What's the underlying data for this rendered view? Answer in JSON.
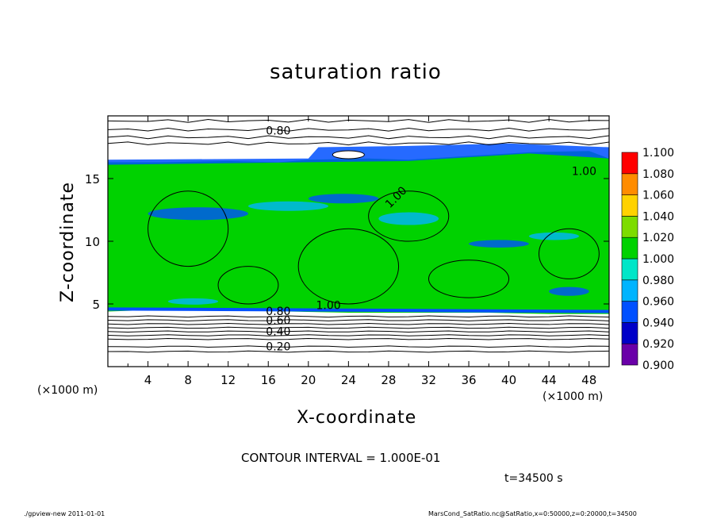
{
  "chart_data": {
    "type": "heatmap",
    "title": "saturation ratio",
    "xlabel": "X-coordinate",
    "ylabel": "Z-coordinate",
    "x_unit_label_left": "(×1000 m)",
    "x_unit_label_right": "(×1000 m)",
    "xlim": [
      0,
      50
    ],
    "ylim": [
      0,
      20
    ],
    "x_ticks": [
      "4",
      "8",
      "12",
      "16",
      "20",
      "24",
      "28",
      "32",
      "36",
      "40",
      "44",
      "48"
    ],
    "y_ticks": [
      "5",
      "10",
      "15"
    ],
    "colorbar": {
      "levels": [
        "0.900",
        "0.920",
        "0.940",
        "0.960",
        "0.980",
        "1.000",
        "1.020",
        "1.040",
        "1.060",
        "1.080",
        "1.100"
      ],
      "colors": [
        "#6a00a8",
        "#0000c8",
        "#0050ff",
        "#00b4ff",
        "#00e6c8",
        "#00d200",
        "#7ddc00",
        "#ffd200",
        "#ff8c00",
        "#ff0000",
        "#ff6e6e"
      ]
    },
    "contour_labels": [
      "0.80",
      "1.00",
      "1.00",
      "1.00",
      "0.80",
      "0.60",
      "0.40",
      "0.20"
    ],
    "contour_interval_text": "CONTOUR INTERVAL = 1.000E-01",
    "time_text": "t=34500 s"
  },
  "footer": {
    "left": "./gpview-new  2011-01-01",
    "right": "MarsCond_SatRatio.nc@SatRatio,x=0:50000,z=0:20000,t=34500"
  }
}
